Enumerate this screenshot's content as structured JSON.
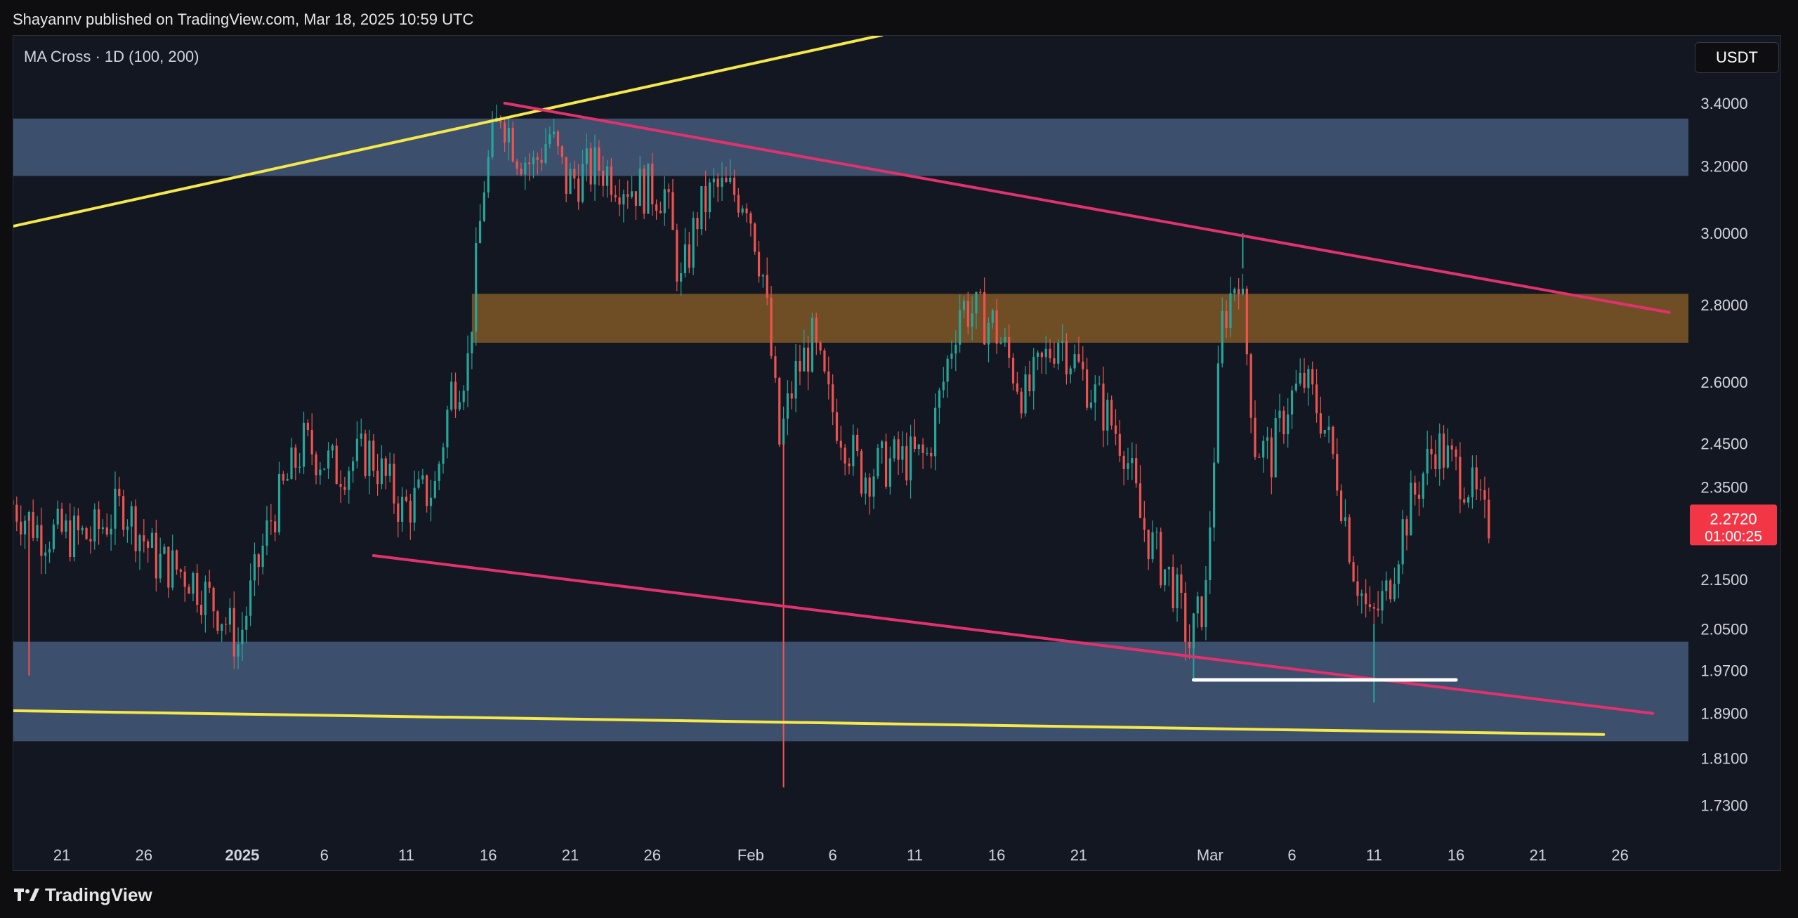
{
  "header": {
    "publish_line": "Shayannv published on TradingView.com, Mar 18, 2025 10:59 UTC"
  },
  "indicator": {
    "label": "MA Cross · 1D (100, 200)"
  },
  "currency": {
    "label": "USDT"
  },
  "footer": {
    "brand": "TradingView",
    "logo_icon": "tradingview-logo-icon"
  },
  "colors": {
    "background": "#131722",
    "bull": "#26a69a",
    "bear": "#ef5350",
    "supply_zone": "#3e5272",
    "resistance_zone": "#7a5426",
    "trendline_yellow": "#f5e84a",
    "channel_pink": "#e0326e",
    "support_line": "#ffffff",
    "price_badge": "#f23645"
  },
  "chart_data": {
    "type": "candlestick",
    "symbol_timeframe": "1D",
    "y_scale": "log",
    "ylim": [
      1.68,
      3.63
    ],
    "y_ticks": [
      "3.4000",
      "3.2000",
      "3.0000",
      "2.8000",
      "2.6000",
      "2.4500",
      "2.3500",
      "2.1500",
      "2.0500",
      "1.9700",
      "1.8900",
      "1.8100",
      "1.7300"
    ],
    "x_range": [
      "2024-12-18",
      "2025-03-30"
    ],
    "x_ticks": [
      {
        "date": "2024-12-21",
        "label": "21"
      },
      {
        "date": "2024-12-26",
        "label": "26"
      },
      {
        "date": "2025-01-01",
        "label": "2025",
        "bold": true
      },
      {
        "date": "2025-01-06",
        "label": "6"
      },
      {
        "date": "2025-01-11",
        "label": "11"
      },
      {
        "date": "2025-01-16",
        "label": "16"
      },
      {
        "date": "2025-01-21",
        "label": "21"
      },
      {
        "date": "2025-01-26",
        "label": "26"
      },
      {
        "date": "2025-02-01",
        "label": "Feb"
      },
      {
        "date": "2025-02-06",
        "label": "6"
      },
      {
        "date": "2025-02-11",
        "label": "11"
      },
      {
        "date": "2025-02-16",
        "label": "16"
      },
      {
        "date": "2025-02-21",
        "label": "21"
      },
      {
        "date": "2025-03-01",
        "label": "Mar"
      },
      {
        "date": "2025-03-06",
        "label": "6"
      },
      {
        "date": "2025-03-11",
        "label": "11"
      },
      {
        "date": "2025-03-16",
        "label": "16"
      },
      {
        "date": "2025-03-21",
        "label": "21"
      },
      {
        "date": "2025-03-26",
        "label": "26"
      }
    ],
    "price_path": [
      [
        "2024-12-18",
        2.32
      ],
      [
        "2024-12-20",
        2.25
      ],
      [
        "2024-12-23",
        2.24
      ],
      [
        "2024-12-25",
        2.31
      ],
      [
        "2024-12-27",
        2.19
      ],
      [
        "2024-12-29",
        2.16
      ],
      [
        "2024-12-31",
        2.08
      ],
      [
        "2025-01-01",
        2.02
      ],
      [
        "2025-01-03",
        2.28
      ],
      [
        "2025-01-05",
        2.45
      ],
      [
        "2025-01-07",
        2.39
      ],
      [
        "2025-01-09",
        2.43
      ],
      [
        "2025-01-11",
        2.3
      ],
      [
        "2025-01-13",
        2.35
      ],
      [
        "2025-01-14",
        2.58
      ],
      [
        "2025-01-15",
        2.65
      ],
      [
        "2025-01-16",
        3.15
      ],
      [
        "2025-01-17",
        3.38
      ],
      [
        "2025-01-18",
        3.25
      ],
      [
        "2025-01-19",
        3.2
      ],
      [
        "2025-01-20",
        3.3
      ],
      [
        "2025-01-21",
        3.15
      ],
      [
        "2025-01-23",
        3.2
      ],
      [
        "2025-01-25",
        3.14
      ],
      [
        "2025-01-27",
        3.12
      ],
      [
        "2025-01-28",
        2.85
      ],
      [
        "2025-01-29",
        3.05
      ],
      [
        "2025-01-30",
        3.13
      ],
      [
        "2025-02-01",
        3.11
      ],
      [
        "2025-02-02",
        2.88
      ],
      [
        "2025-02-03",
        2.45
      ],
      [
        "2025-02-04",
        2.62
      ],
      [
        "2025-02-05",
        2.7
      ],
      [
        "2025-02-06",
        2.55
      ],
      [
        "2025-02-08",
        2.38
      ],
      [
        "2025-02-10",
        2.41
      ],
      [
        "2025-02-12",
        2.42
      ],
      [
        "2025-02-13",
        2.6
      ],
      [
        "2025-02-14",
        2.8
      ],
      [
        "2025-02-16",
        2.75
      ],
      [
        "2025-02-18",
        2.56
      ],
      [
        "2025-02-20",
        2.72
      ],
      [
        "2025-02-22",
        2.58
      ],
      [
        "2025-02-24",
        2.45
      ],
      [
        "2025-02-25",
        2.28
      ],
      [
        "2025-02-26",
        2.2
      ],
      [
        "2025-02-27",
        2.14
      ],
      [
        "2025-02-28",
        2.02
      ],
      [
        "2025-03-01",
        2.12
      ],
      [
        "2025-03-02",
        2.75
      ],
      [
        "2025-03-03",
        2.9
      ],
      [
        "2025-03-04",
        2.45
      ],
      [
        "2025-03-05",
        2.42
      ],
      [
        "2025-03-06",
        2.55
      ],
      [
        "2025-03-07",
        2.6
      ],
      [
        "2025-03-08",
        2.52
      ],
      [
        "2025-03-09",
        2.38
      ],
      [
        "2025-03-10",
        2.18
      ],
      [
        "2025-03-11",
        2.06
      ],
      [
        "2025-03-12",
        2.12
      ],
      [
        "2025-03-13",
        2.26
      ],
      [
        "2025-03-14",
        2.36
      ],
      [
        "2025-03-15",
        2.45
      ],
      [
        "2025-03-16",
        2.4
      ],
      [
        "2025-03-17",
        2.36
      ],
      [
        "2025-03-18",
        2.272
      ]
    ],
    "zones": [
      {
        "name": "upper-supply-zone",
        "y_low": 3.17,
        "y_high": 3.35,
        "color": "#3e5272"
      },
      {
        "name": "resistance-zone",
        "y_low": 2.7,
        "y_high": 2.83,
        "color": "#7a5426"
      },
      {
        "name": "lower-demand-zone",
        "y_low": 1.84,
        "y_high": 2.025,
        "color": "#3e5272"
      }
    ],
    "trendlines": [
      {
        "name": "ascending-trendline",
        "color": "#f5e84a",
        "points": [
          [
            "2024-12-18",
            3.02
          ],
          [
            "2025-02-09",
            3.63
          ]
        ]
      },
      {
        "name": "descending-channel-top",
        "color": "#e0326e",
        "points": [
          [
            "2025-01-17",
            3.4
          ],
          [
            "2025-03-29",
            2.78
          ]
        ]
      },
      {
        "name": "descending-channel-bottom",
        "color": "#e0326e",
        "points": [
          [
            "2025-01-09",
            2.2
          ],
          [
            "2025-03-28",
            1.89
          ]
        ]
      },
      {
        "name": "lower-support-line",
        "color": "#f5e84a",
        "points": [
          [
            "2024-12-18",
            1.895
          ],
          [
            "2025-03-25",
            1.852
          ]
        ]
      },
      {
        "name": "double-bottom-line",
        "color": "#ffffff",
        "points": [
          [
            "2025-02-28",
            1.952
          ],
          [
            "2025-03-16",
            1.952
          ]
        ]
      }
    ],
    "last_price": {
      "value": "2.2720",
      "countdown": "01:00:25"
    }
  }
}
